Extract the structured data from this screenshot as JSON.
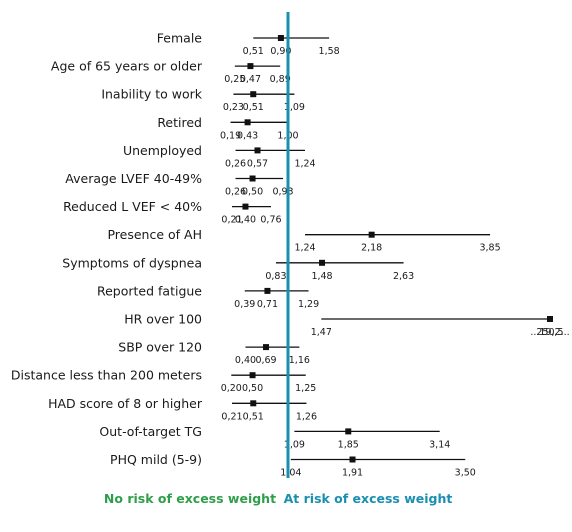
{
  "chart_data": {
    "type": "forest",
    "title": "",
    "xlabel": "",
    "ylabel": "",
    "reference_value": 1.0,
    "reference_line_color": "#1a8fb0",
    "line_color": "#111111",
    "rows": [
      {
        "label": "Female",
        "or": 0.9,
        "lo": 0.51,
        "hi": 1.58,
        "labels": [
          "0,51",
          "0,90",
          "1,58"
        ]
      },
      {
        "label": "Age of 65 years or older",
        "or": 0.47,
        "lo": 0.25,
        "hi": 0.89,
        "labels": [
          "0,25",
          "0,47",
          "0,89"
        ]
      },
      {
        "label": "Inability to work",
        "or": 0.51,
        "lo": 0.23,
        "hi": 1.09,
        "labels": [
          "0,23",
          "0,51",
          "1,09"
        ]
      },
      {
        "label": "Retired",
        "or": 0.43,
        "lo": 0.19,
        "hi": 1.0,
        "labels": [
          "0,19",
          "0,43",
          "1,00"
        ]
      },
      {
        "label": "Unemployed",
        "or": 0.57,
        "lo": 0.26,
        "hi": 1.24,
        "labels": [
          "0,26",
          "0,57",
          "1,24"
        ]
      },
      {
        "label": "Average LVEF 40-49%",
        "or": 0.5,
        "lo": 0.26,
        "hi": 0.93,
        "labels": [
          "0,26",
          "0,50",
          "0,93"
        ]
      },
      {
        "label": "Reduced L VEF < 40%",
        "or": 0.4,
        "lo": 0.21,
        "hi": 0.76,
        "labels": [
          "0,21",
          "0,40",
          "0,76"
        ]
      },
      {
        "label": "Presence of AH",
        "or": 2.18,
        "lo": 1.24,
        "hi": 3.85,
        "labels": [
          "1,24",
          "2,18",
          "3,85"
        ]
      },
      {
        "label": "Symptoms of dyspnea",
        "or": 1.48,
        "lo": 0.83,
        "hi": 2.63,
        "labels": [
          "0,83",
          "1,48",
          "2,63"
        ]
      },
      {
        "label": "Reported fatigue",
        "or": 0.71,
        "lo": 0.39,
        "hi": 1.29,
        "labels": [
          "0,39",
          "0,71",
          "1,29"
        ]
      },
      {
        "label": "HR over 100",
        "or": 19.2,
        "lo": 1.47,
        "hi": 250.5,
        "labels": [
          "1,47",
          "...19,2...",
          "250,5"
        ]
      },
      {
        "label": "SBP over 120",
        "or": 0.69,
        "lo": 0.4,
        "hi": 1.16,
        "labels": [
          "0,40",
          "0,69",
          "1,16"
        ]
      },
      {
        "label": "Distance less than 200 meters",
        "or": 0.5,
        "lo": 0.2,
        "hi": 1.25,
        "labels": [
          "0,20",
          "0,50",
          "1,25"
        ]
      },
      {
        "label": "HAD score of 8 or higher",
        "or": 0.51,
        "lo": 0.21,
        "hi": 1.26,
        "labels": [
          "0,21",
          "0,51",
          "1,26"
        ]
      },
      {
        "label": "Out-of-target TG",
        "or": 1.85,
        "lo": 1.09,
        "hi": 3.14,
        "labels": [
          "1,09",
          "1,85",
          "3,14"
        ]
      },
      {
        "label": "PHQ mild (5-9)",
        "or": 1.91,
        "lo": 1.04,
        "hi": 3.5,
        "labels": [
          "1,04",
          "1,91",
          "3,50"
        ]
      }
    ],
    "footer": {
      "left": {
        "text": "No risk of excess weight",
        "color": "#2f9e4a"
      },
      "right": {
        "text": "At risk of excess weight",
        "color": "#1a8fb0"
      }
    }
  }
}
